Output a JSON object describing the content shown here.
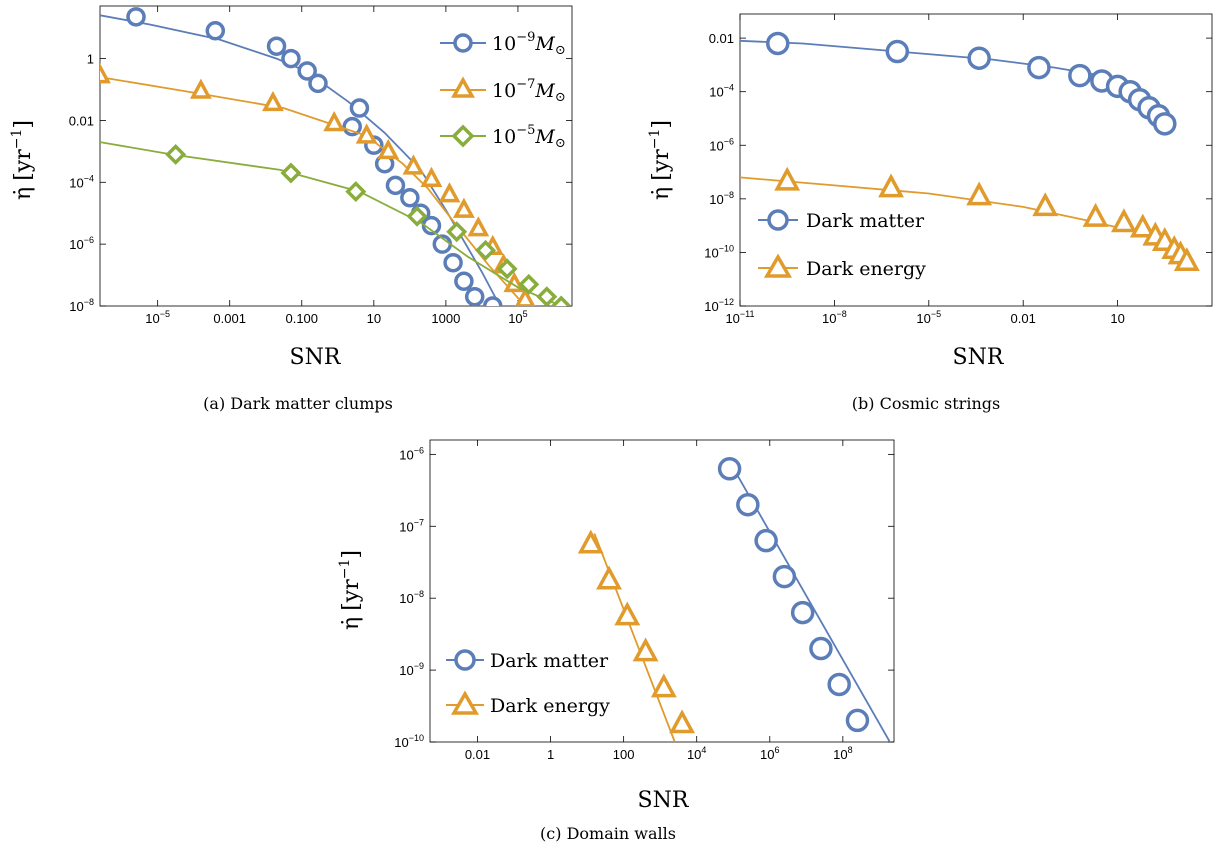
{
  "colors": {
    "blue": "#5b7db8",
    "orange": "#e09b2c",
    "green": "#88ad3c"
  },
  "chart_data": [
    {
      "type": "line",
      "panel": "a",
      "caption": "(a) Dark matter clumps",
      "xlabel": "SNR",
      "ylabel_main": "η̇",
      "ylabel_unit": "[yr",
      "ylabel_sup": "−1",
      "ylabel_close": "]",
      "xscale": "log",
      "yscale": "log",
      "xlim_log10": [
        -6.6,
        6.5
      ],
      "ylim_log10": [
        -8,
        1.7
      ],
      "x_ticks": [
        {
          "log": -5,
          "mant": "10",
          "exp": "−5"
        },
        {
          "log": -3,
          "label": "0.001"
        },
        {
          "log": -1,
          "label": "0.100"
        },
        {
          "log": 1,
          "label": "10"
        },
        {
          "log": 3,
          "label": "1000"
        },
        {
          "log": 5,
          "mant": "10",
          "exp": "5"
        }
      ],
      "y_ticks": [
        {
          "log": 0,
          "label": "1"
        },
        {
          "log": -2,
          "label": "0.01"
        },
        {
          "log": -4,
          "mant": "10",
          "exp": "−4"
        },
        {
          "log": -6,
          "mant": "10",
          "exp": "−6"
        },
        {
          "log": -8,
          "mant": "10",
          "exp": "−8"
        }
      ],
      "legend_position": "top-right",
      "series": [
        {
          "name_mant": "10",
          "name_exp": "−9",
          "name_unit": "M",
          "name_sub": "⊙",
          "marker": "circle",
          "color": "blue",
          "line_log": [
            [
              -6.6,
              1.4
            ],
            [
              -5.2,
              1.1
            ],
            [
              -3.3,
              0.62
            ],
            [
              -1.7,
              0.0
            ],
            [
              -0.9,
              -0.4
            ],
            [
              0.3,
              -1.4
            ],
            [
              1.3,
              -2.4
            ],
            [
              2.3,
              -3.6
            ],
            [
              3.0,
              -4.9
            ],
            [
              4.0,
              -6.9
            ],
            [
              4.5,
              -8.0
            ]
          ],
          "points_log": [
            [
              -5.6,
              1.35
            ],
            [
              -3.4,
              0.9
            ],
            [
              -1.7,
              0.4
            ],
            [
              -1.3,
              0.0
            ],
            [
              -0.85,
              -0.4
            ],
            [
              -0.55,
              -0.8
            ],
            [
              0.6,
              -1.6
            ],
            [
              0.4,
              -2.2
            ],
            [
              1.0,
              -2.8
            ],
            [
              1.3,
              -3.4
            ],
            [
              1.6,
              -4.1
            ],
            [
              2.0,
              -4.5
            ],
            [
              2.3,
              -5.0
            ],
            [
              2.6,
              -5.4
            ],
            [
              2.9,
              -6.0
            ],
            [
              3.2,
              -6.6
            ],
            [
              3.5,
              -7.2
            ],
            [
              3.8,
              -7.7
            ],
            [
              4.3,
              -8.0
            ]
          ]
        },
        {
          "name_mant": "10",
          "name_exp": "−7",
          "name_unit": "M",
          "name_sub": "⊙",
          "marker": "triangle",
          "color": "orange",
          "line_log": [
            [
              -6.6,
              -0.6
            ],
            [
              -4.0,
              -1.1
            ],
            [
              -1.5,
              -1.6
            ],
            [
              0.8,
              -2.5
            ],
            [
              1.8,
              -3.4
            ],
            [
              2.5,
              -4.2
            ],
            [
              3.3,
              -5.4
            ],
            [
              4.2,
              -6.7
            ],
            [
              5.2,
              -8.0
            ]
          ],
          "points_log": [
            [
              -6.6,
              -0.55
            ],
            [
              -3.8,
              -1.05
            ],
            [
              -1.8,
              -1.45
            ],
            [
              -0.1,
              -2.1
            ],
            [
              0.8,
              -2.5
            ],
            [
              1.4,
              -3.0
            ],
            [
              2.1,
              -3.5
            ],
            [
              2.6,
              -3.9
            ],
            [
              3.1,
              -4.4
            ],
            [
              3.5,
              -4.9
            ],
            [
              3.9,
              -5.5
            ],
            [
              4.3,
              -6.1
            ],
            [
              4.6,
              -6.7
            ],
            [
              4.9,
              -7.3
            ],
            [
              5.2,
              -7.8
            ]
          ]
        },
        {
          "name_mant": "10",
          "name_exp": "−5",
          "name_unit": "M",
          "name_sub": "⊙",
          "marker": "diamond",
          "color": "green",
          "line_log": [
            [
              -6.6,
              -2.7
            ],
            [
              -4.6,
              -3.1
            ],
            [
              -1.6,
              -3.6
            ],
            [
              0.6,
              -4.3
            ],
            [
              2.3,
              -5.3
            ],
            [
              3.6,
              -6.4
            ],
            [
              5.0,
              -7.4
            ],
            [
              6.2,
              -8.0
            ]
          ],
          "points_log": [
            [
              -4.5,
              -3.1
            ],
            [
              -1.3,
              -3.7
            ],
            [
              0.5,
              -4.3
            ],
            [
              2.2,
              -5.1
            ],
            [
              3.3,
              -5.6
            ],
            [
              4.1,
              -6.2
            ],
            [
              4.7,
              -6.8
            ],
            [
              5.3,
              -7.3
            ],
            [
              5.8,
              -7.7
            ],
            [
              6.2,
              -8.0
            ]
          ]
        }
      ]
    },
    {
      "type": "line",
      "panel": "b",
      "caption": "(b) Cosmic strings",
      "xlabel": "SNR",
      "ylabel_main": "η̇",
      "ylabel_unit": "[yr",
      "ylabel_sup": "−1",
      "ylabel_close": "]",
      "xscale": "log",
      "yscale": "log",
      "xlim_log10": [
        -11,
        4
      ],
      "ylim_log10": [
        -12,
        -1.1
      ],
      "x_ticks": [
        {
          "log": -11,
          "mant": "10",
          "exp": "−11"
        },
        {
          "log": -8,
          "mant": "10",
          "exp": "−8"
        },
        {
          "log": -5,
          "mant": "10",
          "exp": "−5"
        },
        {
          "log": -2,
          "label": "0.01"
        },
        {
          "log": 1,
          "label": "10"
        }
      ],
      "y_ticks": [
        {
          "log": -2,
          "label": "0.01"
        },
        {
          "log": -4,
          "mant": "10",
          "exp": "−4"
        },
        {
          "log": -6,
          "mant": "10",
          "exp": "−6"
        },
        {
          "log": -8,
          "mant": "10",
          "exp": "−8"
        },
        {
          "log": -10,
          "mant": "10",
          "exp": "−10"
        },
        {
          "log": -12,
          "mant": "10",
          "exp": "−12"
        }
      ],
      "legend_position": "bottom-left",
      "series": [
        {
          "name": "Dark matter",
          "marker": "circle",
          "color": "blue",
          "line_log": [
            [
              -11,
              -2.1
            ],
            [
              -9,
              -2.2
            ],
            [
              -6,
              -2.5
            ],
            [
              -3,
              -2.8
            ],
            [
              -1,
              -3.1
            ],
            [
              0.5,
              -3.4
            ],
            [
              1.2,
              -3.6
            ],
            [
              1.7,
              -4.0
            ],
            [
              2.1,
              -4.5
            ],
            [
              2.4,
              -5.1
            ]
          ],
          "points_log": [
            [
              -9.8,
              -2.2
            ],
            [
              -6.0,
              -2.5
            ],
            [
              -3.4,
              -2.75
            ],
            [
              -1.5,
              -3.1
            ],
            [
              -0.2,
              -3.4
            ],
            [
              0.5,
              -3.6
            ],
            [
              1.0,
              -3.8
            ],
            [
              1.4,
              -4.0
            ],
            [
              1.7,
              -4.3
            ],
            [
              2.0,
              -4.6
            ],
            [
              2.3,
              -4.9
            ],
            [
              2.5,
              -5.2
            ]
          ]
        },
        {
          "name": "Dark energy",
          "marker": "triangle",
          "color": "orange",
          "line_log": [
            [
              -11,
              -7.2
            ],
            [
              -8,
              -7.5
            ],
            [
              -5,
              -7.8
            ],
            [
              -2,
              -8.3
            ],
            [
              0,
              -8.8
            ],
            [
              1.5,
              -9.2
            ],
            [
              2.5,
              -9.7
            ],
            [
              3.3,
              -10.4
            ]
          ],
          "points_log": [
            [
              -9.5,
              -7.35
            ],
            [
              -6.2,
              -7.6
            ],
            [
              -3.4,
              -7.9
            ],
            [
              -1.3,
              -8.3
            ],
            [
              0.3,
              -8.7
            ],
            [
              1.2,
              -8.9
            ],
            [
              1.8,
              -9.1
            ],
            [
              2.2,
              -9.4
            ],
            [
              2.5,
              -9.6
            ],
            [
              2.8,
              -9.9
            ],
            [
              3.0,
              -10.1
            ],
            [
              3.2,
              -10.35
            ]
          ]
        }
      ]
    },
    {
      "type": "line",
      "panel": "c",
      "caption": "(c) Domain walls",
      "xlabel": "SNR",
      "ylabel_main": "η̇",
      "ylabel_unit": "[yr",
      "ylabel_sup": "−1",
      "ylabel_close": "]",
      "xscale": "log",
      "yscale": "log",
      "xlim_log10": [
        -3.3,
        9.4
      ],
      "ylim_log10": [
        -10,
        -5.8
      ],
      "x_ticks": [
        {
          "log": -2,
          "label": "0.01"
        },
        {
          "log": 0,
          "label": "1"
        },
        {
          "log": 2,
          "label": "100"
        },
        {
          "log": 4,
          "mant": "10",
          "exp": "4"
        },
        {
          "log": 6,
          "mant": "10",
          "exp": "6"
        },
        {
          "log": 8,
          "mant": "10",
          "exp": "8"
        }
      ],
      "y_ticks": [
        {
          "log": -6,
          "mant": "10",
          "exp": "−6"
        },
        {
          "log": -7,
          "mant": "10",
          "exp": "−7"
        },
        {
          "log": -8,
          "mant": "10",
          "exp": "−8"
        },
        {
          "log": -9,
          "mant": "10",
          "exp": "−9"
        },
        {
          "log": -10,
          "mant": "10",
          "exp": "−10"
        }
      ],
      "legend_position": "bottom-left",
      "series": [
        {
          "name": "Dark matter",
          "marker": "circle",
          "color": "blue",
          "line_log": [
            [
              4.9,
              -6.1
            ],
            [
              9.4,
              -10.1
            ]
          ],
          "points_log": [
            [
              4.9,
              -6.2
            ],
            [
              5.4,
              -6.7
            ],
            [
              5.9,
              -7.2
            ],
            [
              6.4,
              -7.7
            ],
            [
              6.9,
              -8.2
            ],
            [
              7.4,
              -8.7
            ],
            [
              7.9,
              -9.2
            ],
            [
              8.4,
              -9.7
            ]
          ]
        },
        {
          "name": "Dark energy",
          "marker": "triangle",
          "color": "orange",
          "line_log": [
            [
              1.2,
              -7.1
            ],
            [
              3.4,
              -10.0
            ]
          ],
          "points_log": [
            [
              1.1,
              -7.25
            ],
            [
              1.6,
              -7.75
            ],
            [
              2.1,
              -8.25
            ],
            [
              2.6,
              -8.75
            ],
            [
              3.1,
              -9.25
            ],
            [
              3.6,
              -9.75
            ]
          ]
        }
      ]
    }
  ]
}
